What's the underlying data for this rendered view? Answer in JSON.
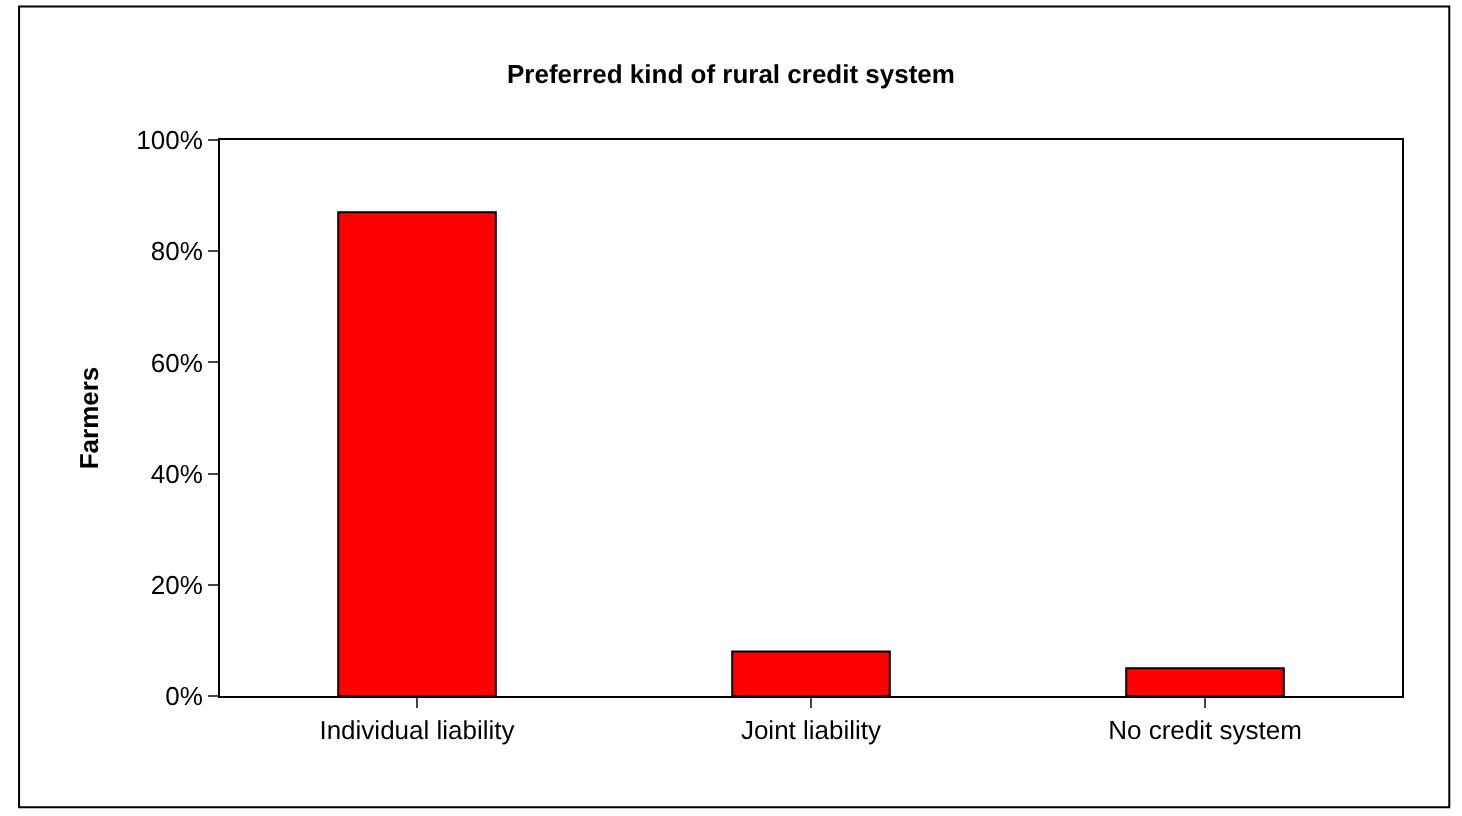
{
  "chart_data": {
    "type": "bar",
    "title": "Preferred kind of rural credit system",
    "ylabel": "Farmers",
    "categories": [
      "Individual liability",
      "Joint liability",
      "No credit system"
    ],
    "values": [
      87,
      8,
      5
    ],
    "color": "#ff0000",
    "ylim": [
      0,
      100
    ],
    "yticks": [
      {
        "value": 0,
        "label": "0%"
      },
      {
        "value": 20,
        "label": "20%"
      },
      {
        "value": 40,
        "label": "40%"
      },
      {
        "value": 60,
        "label": "60%"
      },
      {
        "value": 80,
        "label": "80%"
      },
      {
        "value": 100,
        "label": "100%"
      }
    ],
    "xlabel": null
  }
}
